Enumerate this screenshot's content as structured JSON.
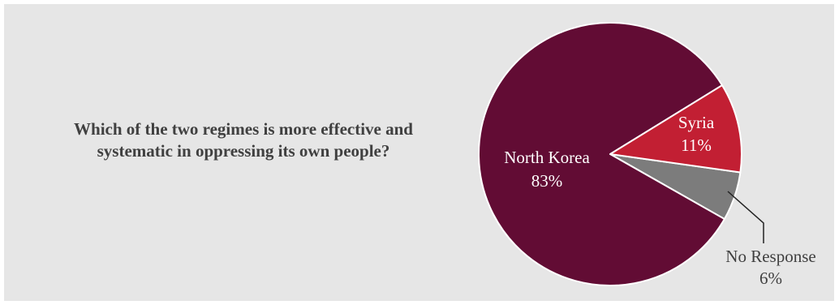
{
  "question": {
    "line1": "Which of the two regimes is more effective and",
    "line2": "systematic in oppressing its own people?"
  },
  "chart_data": {
    "type": "pie",
    "title": "",
    "slices": [
      {
        "name": "North Korea",
        "value": 83,
        "label": "83%",
        "color": "#620c34",
        "text_color": "#ffffff"
      },
      {
        "name": "Syria",
        "value": 11,
        "label": "11%",
        "color": "#c21f33",
        "text_color": "#ffffff"
      },
      {
        "name": "No Response",
        "value": 6,
        "label": "6%",
        "color": "#7c7c7c",
        "text_color": "#404040"
      }
    ],
    "colors": {
      "background": "#e6e6e6",
      "leader_line": "#222222"
    }
  }
}
